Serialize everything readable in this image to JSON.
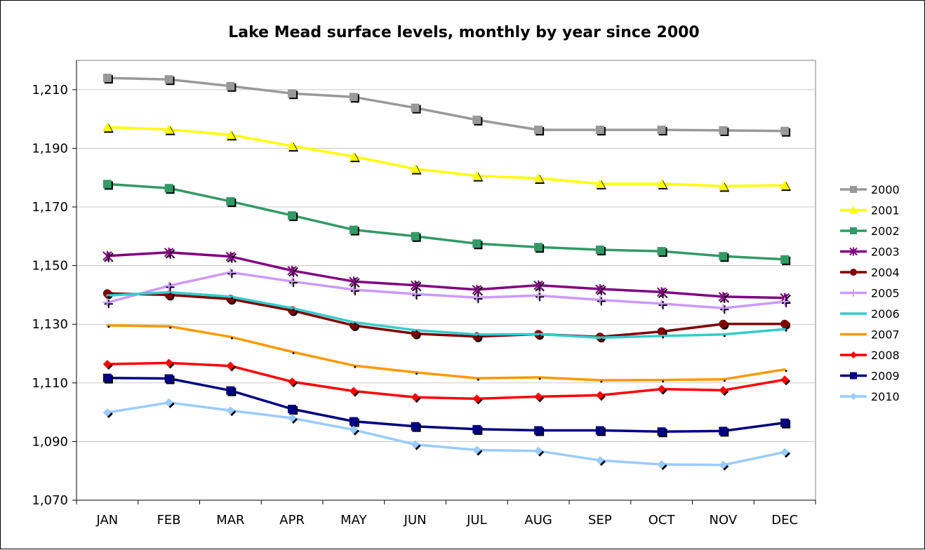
{
  "chart_data": {
    "type": "line",
    "title": "Lake Mead surface levels, monthly by year since 2000",
    "xlabel": "",
    "ylabel": "",
    "categories": [
      "JAN",
      "FEB",
      "MAR",
      "APR",
      "MAY",
      "JUN",
      "JUL",
      "AUG",
      "SEP",
      "OCT",
      "NOV",
      "DEC"
    ],
    "ylim": [
      1070,
      1220
    ],
    "yticks": [
      1070,
      1090,
      1110,
      1130,
      1150,
      1170,
      1190,
      1210
    ],
    "ytick_labels": [
      "1,070",
      "1,090",
      "1,110",
      "1,130",
      "1,150",
      "1,170",
      "1,190",
      "1,210"
    ],
    "grid": "horizontal",
    "legend_position": "right",
    "series": [
      {
        "name": "2000",
        "color": "#999999",
        "marker": "square",
        "values": [
          1214.0,
          1213.5,
          1211.2,
          1208.7,
          1207.5,
          1203.8,
          1199.7,
          1196.3,
          1196.3,
          1196.3,
          1196.1,
          1195.9
        ]
      },
      {
        "name": "2001",
        "color": "#ffff00",
        "marker": "triangle",
        "values": [
          1197.2,
          1196.4,
          1194.6,
          1190.8,
          1187.2,
          1183.0,
          1180.6,
          1179.8,
          1177.9,
          1177.9,
          1177.1,
          1177.4
        ]
      },
      {
        "name": "2002",
        "color": "#339966",
        "marker": "square",
        "values": [
          1177.8,
          1176.4,
          1171.9,
          1167.1,
          1162.2,
          1160.0,
          1157.5,
          1156.3,
          1155.4,
          1154.9,
          1153.2,
          1152.1
        ]
      },
      {
        "name": "2003",
        "color": "#800080",
        "marker": "star",
        "values": [
          1153.3,
          1154.5,
          1153.1,
          1148.3,
          1144.6,
          1143.3,
          1141.8,
          1143.3,
          1142.0,
          1141.0,
          1139.4,
          1139.0
        ]
      },
      {
        "name": "2004",
        "color": "#800000",
        "marker": "circle",
        "values": [
          1140.5,
          1140.0,
          1138.6,
          1134.7,
          1129.6,
          1126.8,
          1125.8,
          1126.6,
          1125.7,
          1127.5,
          1130.1,
          1130.1
        ]
      },
      {
        "name": "2005",
        "color": "#cc99ff",
        "marker": "plus",
        "values": [
          1137.4,
          1143.1,
          1147.7,
          1144.6,
          1141.8,
          1140.3,
          1139.1,
          1139.8,
          1138.3,
          1137.0,
          1135.5,
          1137.7
        ]
      },
      {
        "name": "2006",
        "color": "#33cccc",
        "marker": "none",
        "values": [
          1139.8,
          1140.9,
          1139.4,
          1135.5,
          1130.7,
          1128.0,
          1126.5,
          1126.6,
          1125.4,
          1126.0,
          1126.5,
          1128.3
        ]
      },
      {
        "name": "2007",
        "color": "#ff9900",
        "marker": "none",
        "values": [
          1129.6,
          1129.3,
          1125.7,
          1120.6,
          1115.9,
          1113.6,
          1111.6,
          1111.9,
          1110.9,
          1111.0,
          1111.2,
          1114.6
        ]
      },
      {
        "name": "2008",
        "color": "#ff0000",
        "marker": "diamond",
        "values": [
          1116.4,
          1116.8,
          1115.8,
          1110.4,
          1107.2,
          1105.1,
          1104.6,
          1105.3,
          1105.8,
          1107.9,
          1107.5,
          1111.1
        ]
      },
      {
        "name": "2009",
        "color": "#000080",
        "marker": "square",
        "values": [
          1111.7,
          1111.5,
          1107.4,
          1101.1,
          1096.9,
          1095.2,
          1094.2,
          1093.8,
          1093.8,
          1093.4,
          1093.6,
          1096.4
        ]
      },
      {
        "name": "2010",
        "color": "#99ccff",
        "marker": "diamond",
        "values": [
          1099.9,
          1103.3,
          1100.6,
          1098.0,
          1094.0,
          1089.0,
          1087.1,
          1086.8,
          1083.6,
          1082.2,
          1082.0,
          1086.4
        ]
      }
    ]
  }
}
